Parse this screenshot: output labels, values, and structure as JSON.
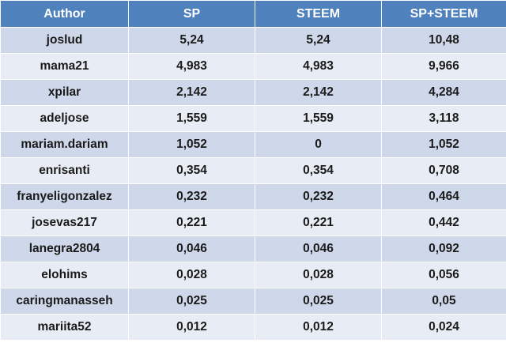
{
  "colors": {
    "header_bg": "#4f81bd",
    "header_text": "#ffffff",
    "row_odd_bg": "#cfd8ea",
    "row_even_bg": "#e8edf5"
  },
  "headers": [
    "Author",
    "SP",
    "STEEM",
    "SP+STEEM"
  ],
  "rows": [
    [
      "joslud",
      "5,24",
      "5,24",
      "10,48"
    ],
    [
      "mama21",
      "4,983",
      "4,983",
      "9,966"
    ],
    [
      "xpilar",
      "2,142",
      "2,142",
      "4,284"
    ],
    [
      "adeljose",
      "1,559",
      "1,559",
      "3,118"
    ],
    [
      "mariam.dariam",
      "1,052",
      "0",
      "1,052"
    ],
    [
      "enrisanti",
      "0,354",
      "0,354",
      "0,708"
    ],
    [
      "franyeligonzalez",
      "0,232",
      "0,232",
      "0,464"
    ],
    [
      "josevas217",
      "0,221",
      "0,221",
      "0,442"
    ],
    [
      "lanegra2804",
      "0,046",
      "0,046",
      "0,092"
    ],
    [
      "elohims",
      "0,028",
      "0,028",
      "0,056"
    ],
    [
      "caringmanasseh",
      "0,025",
      "0,025",
      "0,05"
    ],
    [
      "mariita52",
      "0,012",
      "0,012",
      "0,024"
    ]
  ]
}
